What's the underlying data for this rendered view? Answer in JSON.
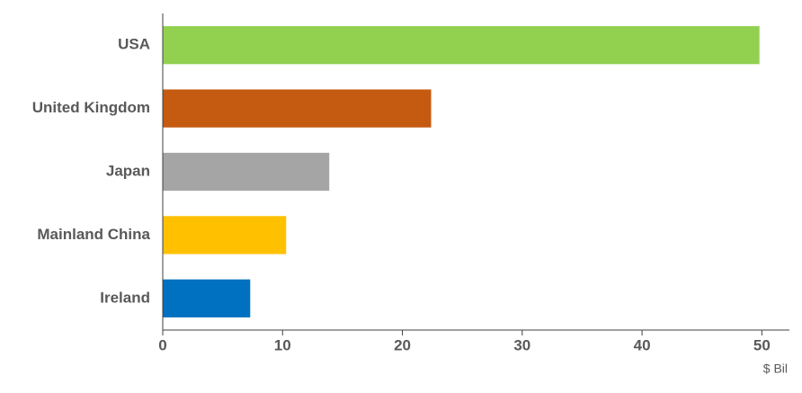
{
  "chart_data": {
    "type": "hbar",
    "categories": [
      "USA",
      "United Kingdom",
      "Japan",
      "Mainland China",
      "Ireland"
    ],
    "values": [
      49.8,
      22.4,
      13.9,
      10.3,
      7.3
    ],
    "colors": [
      "#92d050",
      "#c55a11",
      "#a5a5a5",
      "#ffc000",
      "#0070c0"
    ],
    "xlim": [
      0,
      52.3
    ],
    "xticks": [
      0,
      10,
      20,
      30,
      40,
      50
    ],
    "x_axis_label": "$ Bil",
    "grid": false
  }
}
